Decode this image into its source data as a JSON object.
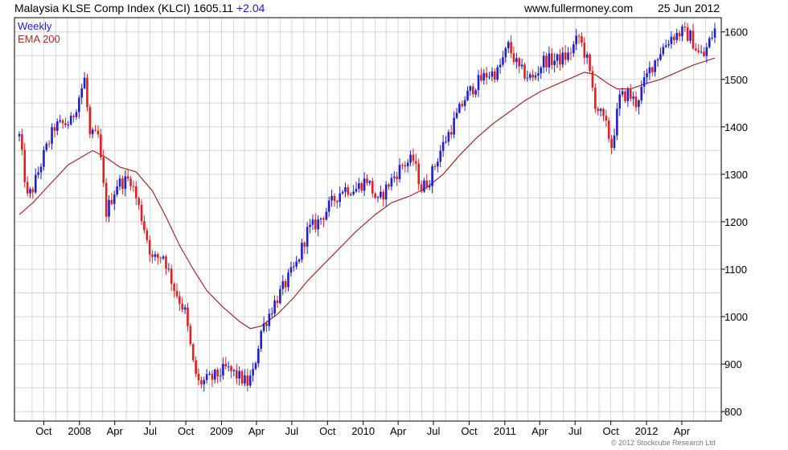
{
  "header": {
    "title": "Malaysia KLSE Comp Index (KLCI) 1605.11",
    "change": "+2.04",
    "site": "www.fullermoney.com",
    "date": "25 Jun 2012"
  },
  "copyright": "© 2012 Stockcube Research Ltd",
  "colors": {
    "up": "#1f1fd0",
    "down": "#e02020",
    "ema": "#a52a2a",
    "grid": "#d6d6d6",
    "frame": "#000000"
  },
  "chart_data": {
    "type": "line",
    "chart_style": "candlestick",
    "legend": [
      {
        "label": "Weekly",
        "color": "#1f1fd0"
      },
      {
        "label": "EMA 200",
        "color": "#a52a2a"
      }
    ],
    "legend_position": "top-left",
    "grid": true,
    "y_axis_side": "right",
    "ylim": [
      780,
      1630
    ],
    "yticks": [
      800,
      900,
      1000,
      1100,
      1200,
      1300,
      1400,
      1500,
      1600
    ],
    "x_range": [
      "2007-07-30",
      "2012-06-25"
    ],
    "xticks": [
      {
        "label": "Oct",
        "date": "2007-10-01"
      },
      {
        "label": "2008",
        "date": "2008-01-01"
      },
      {
        "label": "Apr",
        "date": "2008-04-01"
      },
      {
        "label": "Jul",
        "date": "2008-07-01"
      },
      {
        "label": "Oct",
        "date": "2008-10-01"
      },
      {
        "label": "2009",
        "date": "2009-01-01"
      },
      {
        "label": "Apr",
        "date": "2009-04-01"
      },
      {
        "label": "Jul",
        "date": "2009-07-01"
      },
      {
        "label": "Oct",
        "date": "2009-10-01"
      },
      {
        "label": "2010",
        "date": "2010-01-01"
      },
      {
        "label": "Apr",
        "date": "2010-04-01"
      },
      {
        "label": "Jul",
        "date": "2010-07-01"
      },
      {
        "label": "Oct",
        "date": "2010-10-01"
      },
      {
        "label": "2011",
        "date": "2011-01-01"
      },
      {
        "label": "Apr",
        "date": "2011-04-01"
      },
      {
        "label": "Jul",
        "date": "2011-07-01"
      },
      {
        "label": "Oct",
        "date": "2011-10-01"
      },
      {
        "label": "2012",
        "date": "2012-01-01"
      },
      {
        "label": "Apr",
        "date": "2012-04-01"
      }
    ],
    "close_anchors": [
      [
        "2007-07-30",
        1380
      ],
      [
        "2007-08-20",
        1250
      ],
      [
        "2007-09-03",
        1270
      ],
      [
        "2007-10-01",
        1340
      ],
      [
        "2007-10-29",
        1400
      ],
      [
        "2007-12-10",
        1410
      ],
      [
        "2008-01-14",
        1500
      ],
      [
        "2008-01-28",
        1380
      ],
      [
        "2008-02-18",
        1380
      ],
      [
        "2008-03-10",
        1220
      ],
      [
        "2008-04-07",
        1280
      ],
      [
        "2008-05-12",
        1290
      ],
      [
        "2008-06-09",
        1210
      ],
      [
        "2008-07-07",
        1120
      ],
      [
        "2008-08-04",
        1130
      ],
      [
        "2008-09-01",
        1060
      ],
      [
        "2008-09-29",
        1010
      ],
      [
        "2008-10-20",
        900
      ],
      [
        "2008-11-03",
        860
      ],
      [
        "2008-12-08",
        870
      ],
      [
        "2009-01-12",
        890
      ],
      [
        "2009-02-02",
        880
      ],
      [
        "2009-03-09",
        860
      ],
      [
        "2009-03-23",
        880
      ],
      [
        "2009-04-13",
        970
      ],
      [
        "2009-05-18",
        1030
      ],
      [
        "2009-06-15",
        1070
      ],
      [
        "2009-07-13",
        1110
      ],
      [
        "2009-08-10",
        1180
      ],
      [
        "2009-09-07",
        1200
      ],
      [
        "2009-10-12",
        1240
      ],
      [
        "2009-11-09",
        1270
      ],
      [
        "2009-12-14",
        1270
      ],
      [
        "2010-01-11",
        1290
      ],
      [
        "2010-02-08",
        1240
      ],
      [
        "2010-03-08",
        1280
      ],
      [
        "2010-04-12",
        1320
      ],
      [
        "2010-05-10",
        1330
      ],
      [
        "2010-05-31",
        1270
      ],
      [
        "2010-06-21",
        1290
      ],
      [
        "2010-07-19",
        1350
      ],
      [
        "2010-08-23",
        1410
      ],
      [
        "2010-09-20",
        1460
      ],
      [
        "2010-10-18",
        1490
      ],
      [
        "2010-11-15",
        1510
      ],
      [
        "2010-12-13",
        1515
      ],
      [
        "2011-01-10",
        1570
      ],
      [
        "2011-02-07",
        1520
      ],
      [
        "2011-03-14",
        1500
      ],
      [
        "2011-04-11",
        1540
      ],
      [
        "2011-05-16",
        1540
      ],
      [
        "2011-06-13",
        1550
      ],
      [
        "2011-07-11",
        1590
      ],
      [
        "2011-08-01",
        1540
      ],
      [
        "2011-08-22",
        1450
      ],
      [
        "2011-09-19",
        1400
      ],
      [
        "2011-10-03",
        1360
      ],
      [
        "2011-10-24",
        1460
      ],
      [
        "2011-11-14",
        1470
      ],
      [
        "2011-12-05",
        1450
      ],
      [
        "2012-01-09",
        1520
      ],
      [
        "2012-02-06",
        1560
      ],
      [
        "2012-03-05",
        1590
      ],
      [
        "2012-04-02",
        1600
      ],
      [
        "2012-04-23",
        1590
      ],
      [
        "2012-05-14",
        1555
      ],
      [
        "2012-05-28",
        1550
      ],
      [
        "2012-06-11",
        1580
      ],
      [
        "2012-06-25",
        1605
      ]
    ],
    "ema_anchors": [
      [
        "2007-07-30",
        1215
      ],
      [
        "2007-09-03",
        1240
      ],
      [
        "2007-10-01",
        1265
      ],
      [
        "2007-12-03",
        1320
      ],
      [
        "2008-02-04",
        1350
      ],
      [
        "2008-03-10",
        1335
      ],
      [
        "2008-04-14",
        1315
      ],
      [
        "2008-05-26",
        1305
      ],
      [
        "2008-07-07",
        1265
      ],
      [
        "2008-08-11",
        1210
      ],
      [
        "2008-09-15",
        1150
      ],
      [
        "2008-10-20",
        1100
      ],
      [
        "2008-11-24",
        1055
      ],
      [
        "2009-01-05",
        1020
      ],
      [
        "2009-02-16",
        990
      ],
      [
        "2009-03-16",
        975
      ],
      [
        "2009-04-13",
        980
      ],
      [
        "2009-05-25",
        1005
      ],
      [
        "2009-07-06",
        1040
      ],
      [
        "2009-08-10",
        1075
      ],
      [
        "2009-09-21",
        1110
      ],
      [
        "2009-11-02",
        1145
      ],
      [
        "2009-12-14",
        1180
      ],
      [
        "2010-02-01",
        1215
      ],
      [
        "2010-03-15",
        1240
      ],
      [
        "2010-05-03",
        1255
      ],
      [
        "2010-06-14",
        1272
      ],
      [
        "2010-07-26",
        1300
      ],
      [
        "2010-09-06",
        1340
      ],
      [
        "2010-10-18",
        1375
      ],
      [
        "2010-11-29",
        1405
      ],
      [
        "2011-01-10",
        1430
      ],
      [
        "2011-02-21",
        1455
      ],
      [
        "2011-04-04",
        1475
      ],
      [
        "2011-05-16",
        1490
      ],
      [
        "2011-06-27",
        1505
      ],
      [
        "2011-07-25",
        1515
      ],
      [
        "2011-08-22",
        1510
      ],
      [
        "2011-09-26",
        1490
      ],
      [
        "2011-10-17",
        1480
      ],
      [
        "2011-11-21",
        1480
      ],
      [
        "2011-12-26",
        1490
      ],
      [
        "2012-02-06",
        1500
      ],
      [
        "2012-03-19",
        1515
      ],
      [
        "2012-04-30",
        1530
      ],
      [
        "2012-06-25",
        1545
      ]
    ],
    "week_range": {
      "start": "2007-07-30",
      "end": "2012-06-25",
      "step_days": 7
    },
    "title": "Malaysia KLSE Comp Index (KLCI) 1605.11"
  }
}
